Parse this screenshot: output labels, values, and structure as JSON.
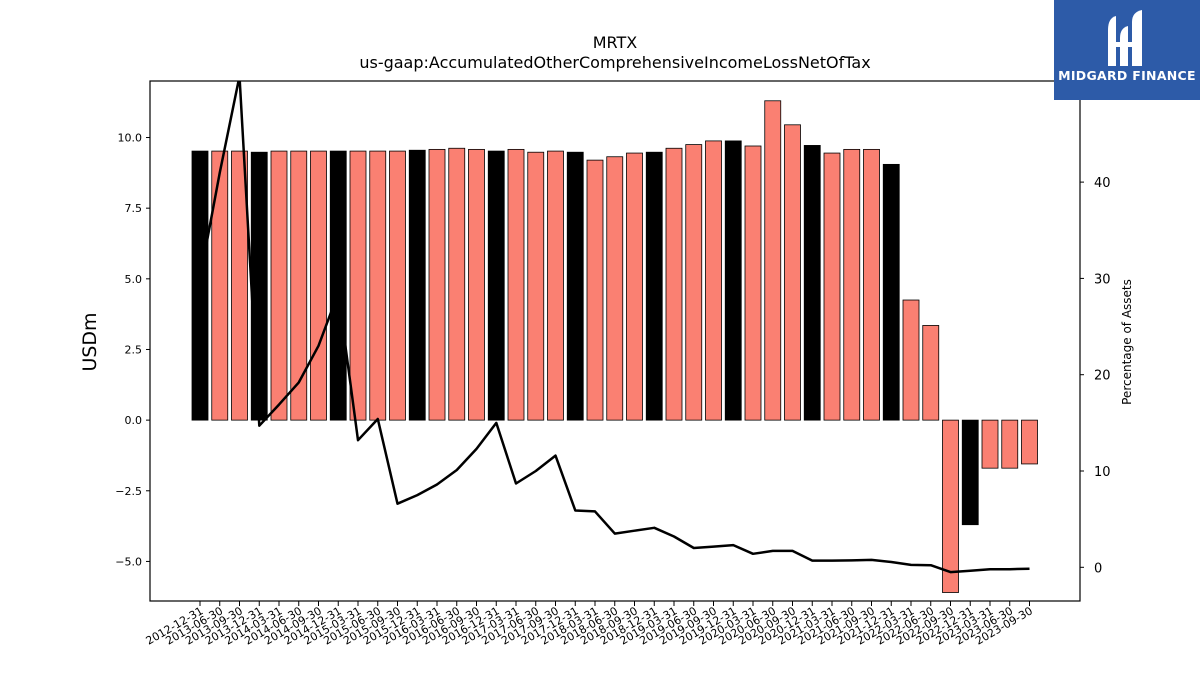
{
  "chart_data": {
    "type": "bar",
    "title": "MRTX",
    "subtitle": "us-gaap:AccumulatedOtherComprehensiveIncomeLossNetOfTax",
    "ylabel": "USDm",
    "y2label": "Percentage of Assets",
    "ylim": [
      -6.4,
      12.0
    ],
    "y2lim": [
      -3.5,
      50.5
    ],
    "yticks": [
      -5.0,
      -2.5,
      0.0,
      2.5,
      5.0,
      7.5,
      10.0
    ],
    "ytick_labels": [
      "−5.0",
      "−2.5",
      "0.0",
      "2.5",
      "5.0",
      "7.5",
      "10.0"
    ],
    "y2ticks": [
      0,
      10,
      20,
      30,
      40
    ],
    "y2tick_labels": [
      "0",
      "10",
      "20",
      "30",
      "40"
    ],
    "grid": false,
    "categories": [
      "2012-12-31",
      "2013-06-30",
      "2013-09-30",
      "2013-12-31",
      "2014-03-31",
      "2014-06-30",
      "2014-09-30",
      "2014-12-31",
      "2015-03-31",
      "2015-06-30",
      "2015-09-30",
      "2015-12-31",
      "2016-03-31",
      "2016-06-30",
      "2016-09-30",
      "2016-12-31",
      "2017-03-31",
      "2017-06-30",
      "2017-09-30",
      "2017-12-31",
      "2018-03-31",
      "2018-06-30",
      "2018-09-30",
      "2018-12-31",
      "2019-03-31",
      "2019-06-30",
      "2019-09-30",
      "2019-12-31",
      "2020-03-31",
      "2020-06-30",
      "2020-09-30",
      "2020-12-31",
      "2021-03-31",
      "2021-06-30",
      "2021-09-30",
      "2021-12-31",
      "2022-03-31",
      "2022-06-30",
      "2022-09-30",
      "2022-12-31",
      "2023-03-31",
      "2023-06-30",
      "2023-09-30"
    ],
    "series": [
      {
        "type": "bar",
        "values": [
          9.52,
          9.52,
          9.52,
          9.48,
          9.52,
          9.52,
          9.52,
          9.52,
          9.52,
          9.52,
          9.52,
          9.55,
          9.58,
          9.62,
          9.58,
          9.52,
          9.58,
          9.48,
          9.52,
          9.48,
          9.2,
          9.32,
          9.45,
          9.48,
          9.62,
          9.75,
          9.88,
          9.88,
          9.7,
          11.3,
          10.45,
          9.72,
          9.45,
          9.58,
          9.58,
          9.05,
          4.25,
          3.35,
          -6.1,
          -3.7,
          -1.7,
          -1.7,
          -1.55
        ],
        "colors": [
          "#000000",
          "#fa8072",
          "#fa8072",
          "#000000",
          "#fa8072",
          "#fa8072",
          "#fa8072",
          "#000000",
          "#fa8072",
          "#fa8072",
          "#fa8072",
          "#000000",
          "#fa8072",
          "#fa8072",
          "#fa8072",
          "#000000",
          "#fa8072",
          "#fa8072",
          "#fa8072",
          "#000000",
          "#fa8072",
          "#fa8072",
          "#fa8072",
          "#000000",
          "#fa8072",
          "#fa8072",
          "#fa8072",
          "#000000",
          "#fa8072",
          "#fa8072",
          "#fa8072",
          "#000000",
          "#fa8072",
          "#fa8072",
          "#fa8072",
          "#000000",
          "#fa8072",
          "#fa8072",
          "#fa8072",
          "#000000",
          "#fa8072",
          "#fa8072",
          "#fa8072"
        ]
      },
      {
        "type": "line",
        "axis": "right",
        "color": "#000000",
        "values": [
          30.0,
          41.0,
          51.0,
          14.7,
          16.9,
          19.2,
          23.0,
          28.5,
          13.2,
          15.4,
          6.6,
          7.5,
          8.6,
          10.1,
          12.3,
          15.0,
          8.7,
          10.0,
          11.6,
          5.9,
          5.8,
          3.5,
          3.8,
          4.1,
          3.2,
          2.0,
          2.15,
          2.3,
          1.4,
          1.7,
          1.7,
          0.7,
          0.7,
          0.72,
          0.77,
          0.55,
          0.25,
          0.22,
          -0.5,
          -0.35,
          -0.2,
          -0.2,
          -0.15
        ]
      }
    ]
  },
  "logo": {
    "text": "MIDGARD FINANCE",
    "color": "#2d5ba8"
  }
}
